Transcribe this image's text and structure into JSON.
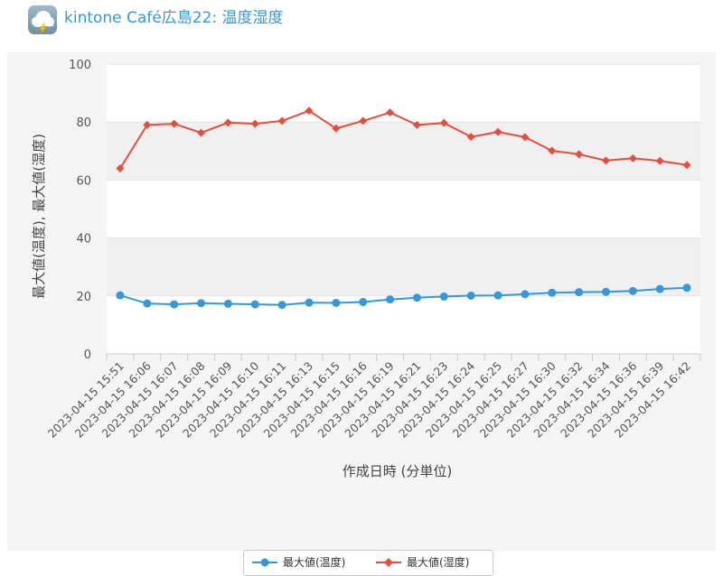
{
  "app": {
    "title": "kintone Café広島22: 温度湿度",
    "icon": "weather-cloud-lightning-icon"
  },
  "chart_data": {
    "type": "line",
    "title": "",
    "xlabel": "作成日時 (分単位)",
    "ylabel": "最大値(温度), 最大値(湿度)",
    "ylim": [
      0,
      100
    ],
    "yticks": [
      0,
      20,
      40,
      60,
      80,
      100
    ],
    "grid": "horizontal bands",
    "legend_position": "bottom-center",
    "categories": [
      "2023-04-15 15:51",
      "2023-04-15 16:06",
      "2023-04-15 16:07",
      "2023-04-15 16:08",
      "2023-04-15 16:09",
      "2023-04-15 16:10",
      "2023-04-15 16:11",
      "2023-04-15 16:13",
      "2023-04-15 16:15",
      "2023-04-15 16:16",
      "2023-04-15 16:19",
      "2023-04-15 16:21",
      "2023-04-15 16:23",
      "2023-04-15 16:24",
      "2023-04-15 16:25",
      "2023-04-15 16:27",
      "2023-04-15 16:30",
      "2023-04-15 16:32",
      "2023-04-15 16:34",
      "2023-04-15 16:36",
      "2023-04-15 16:39",
      "2023-04-15 16:42"
    ],
    "series": [
      {
        "name": "最大値(温度)",
        "color": "#3498db",
        "marker": "circle",
        "values": [
          20.2,
          17.4,
          17.1,
          17.5,
          17.3,
          17.1,
          16.9,
          17.7,
          17.6,
          17.9,
          18.8,
          19.4,
          19.8,
          20.1,
          20.2,
          20.6,
          21.1,
          21.3,
          21.4,
          21.7,
          22.4,
          22.8
        ]
      },
      {
        "name": "最大値(湿度)",
        "color": "#e74c3c",
        "marker": "diamond",
        "values": [
          64.0,
          79.0,
          79.4,
          76.3,
          79.8,
          79.4,
          80.4,
          83.9,
          77.8,
          80.4,
          83.3,
          79.0,
          79.7,
          74.9,
          76.6,
          74.8,
          70.1,
          68.9,
          66.7,
          67.5,
          66.6,
          65.2
        ]
      }
    ]
  }
}
